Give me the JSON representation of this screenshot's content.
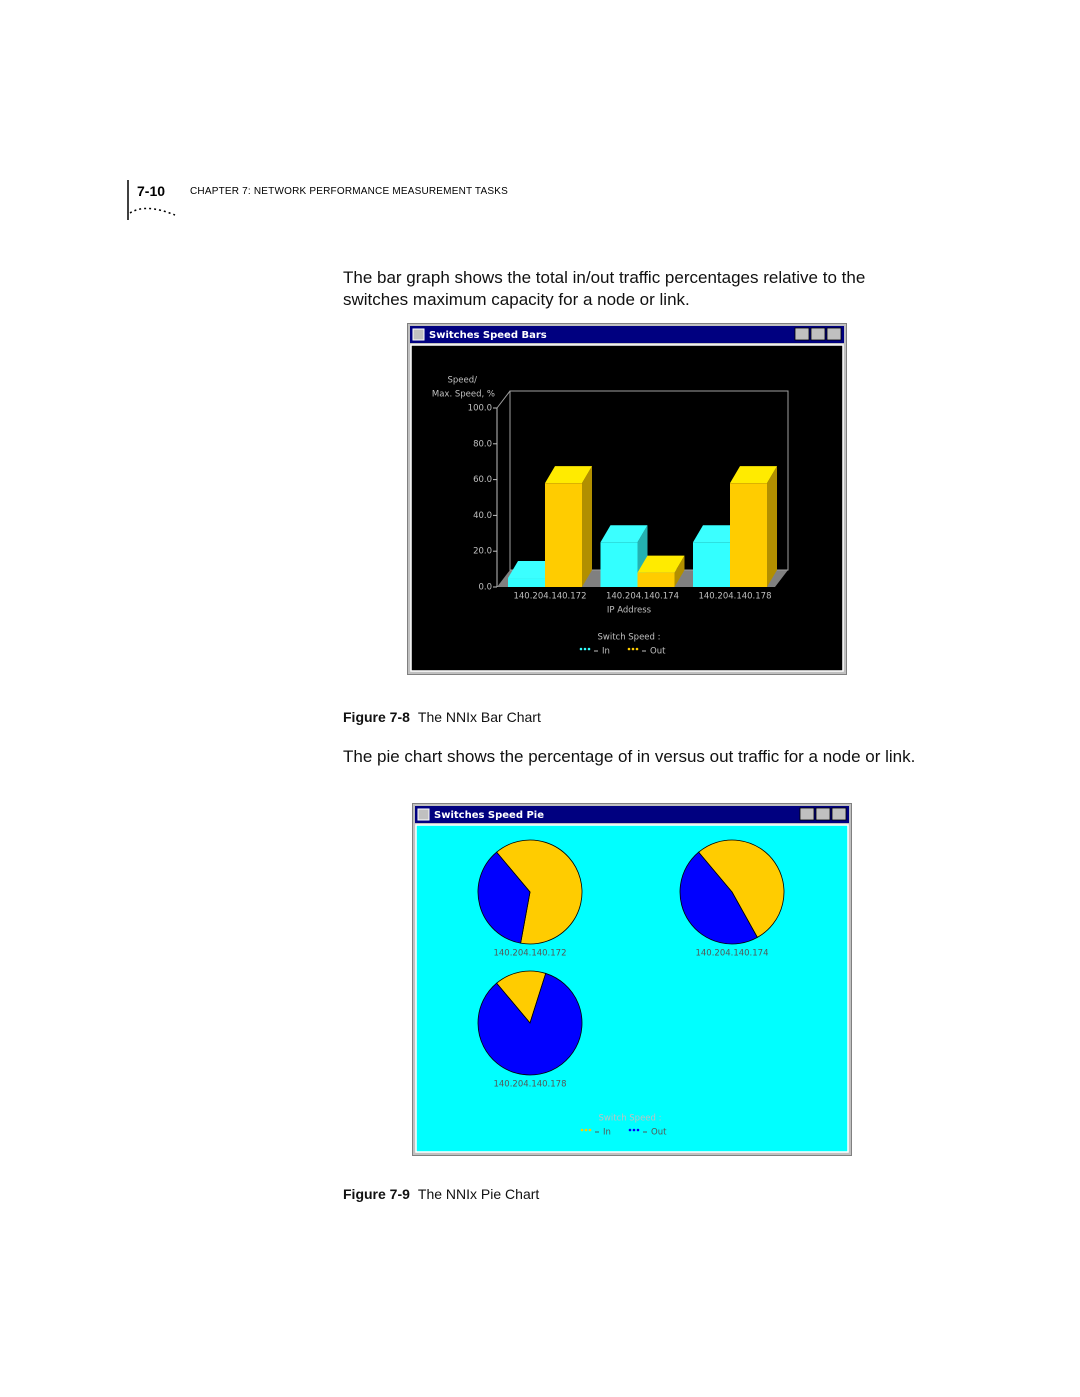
{
  "header": {
    "page_number": "7-10",
    "chapter": "CHAPTER 7: NETWORK PERFORMANCE MEASUREMENT TASKS"
  },
  "paragraphs": [
    "The bar graph shows the total in/out traffic percentages relative to the switches maximum capacity for a node or link.",
    "The pie chart shows the percentage of in versus out traffic for a node or link."
  ],
  "figures": [
    {
      "number": "Figure 7-8",
      "caption": "The NNIx Bar Chart"
    },
    {
      "number": "Figure 7-9",
      "caption": "The NNIx Pie Chart"
    }
  ],
  "chart_data": [
    {
      "type": "bar",
      "title": "Switches Speed Bars",
      "y_label": [
        "Speed/",
        "Max. Speed, %"
      ],
      "x_label": "IP Address",
      "categories": [
        "140.204.140.172",
        "140.204.140.174",
        "140.204.140.178"
      ],
      "series": [
        {
          "name": "In",
          "color": "#33ffff",
          "values": [
            5,
            25,
            25
          ]
        },
        {
          "name": "Out",
          "color": "#ffcc00",
          "values": [
            58,
            8,
            58
          ]
        }
      ],
      "ylim": [
        0,
        100
      ],
      "yticks": [
        {
          "value": 0,
          "label": "0.0"
        },
        {
          "value": 20,
          "label": "20.0"
        },
        {
          "value": 40,
          "label": "40.0"
        },
        {
          "value": 60,
          "label": "60.0"
        },
        {
          "value": 80,
          "label": "80.0"
        },
        {
          "value": 100,
          "label": "100.0"
        }
      ],
      "legend_title": "Switch Speed :"
    },
    {
      "type": "pie",
      "title": "Switches Speed Pie",
      "categories": [
        "In",
        "Out"
      ],
      "colors": [
        "#ffcc00",
        "#0000ff"
      ],
      "series": [
        {
          "name": "140.204.140.172",
          "values": [
            64,
            36
          ]
        },
        {
          "name": "140.204.140.174",
          "values": [
            53,
            47
          ]
        },
        {
          "name": "140.204.140.178",
          "values": [
            16,
            84
          ]
        }
      ],
      "legend_title": "Switch Speed :"
    }
  ]
}
